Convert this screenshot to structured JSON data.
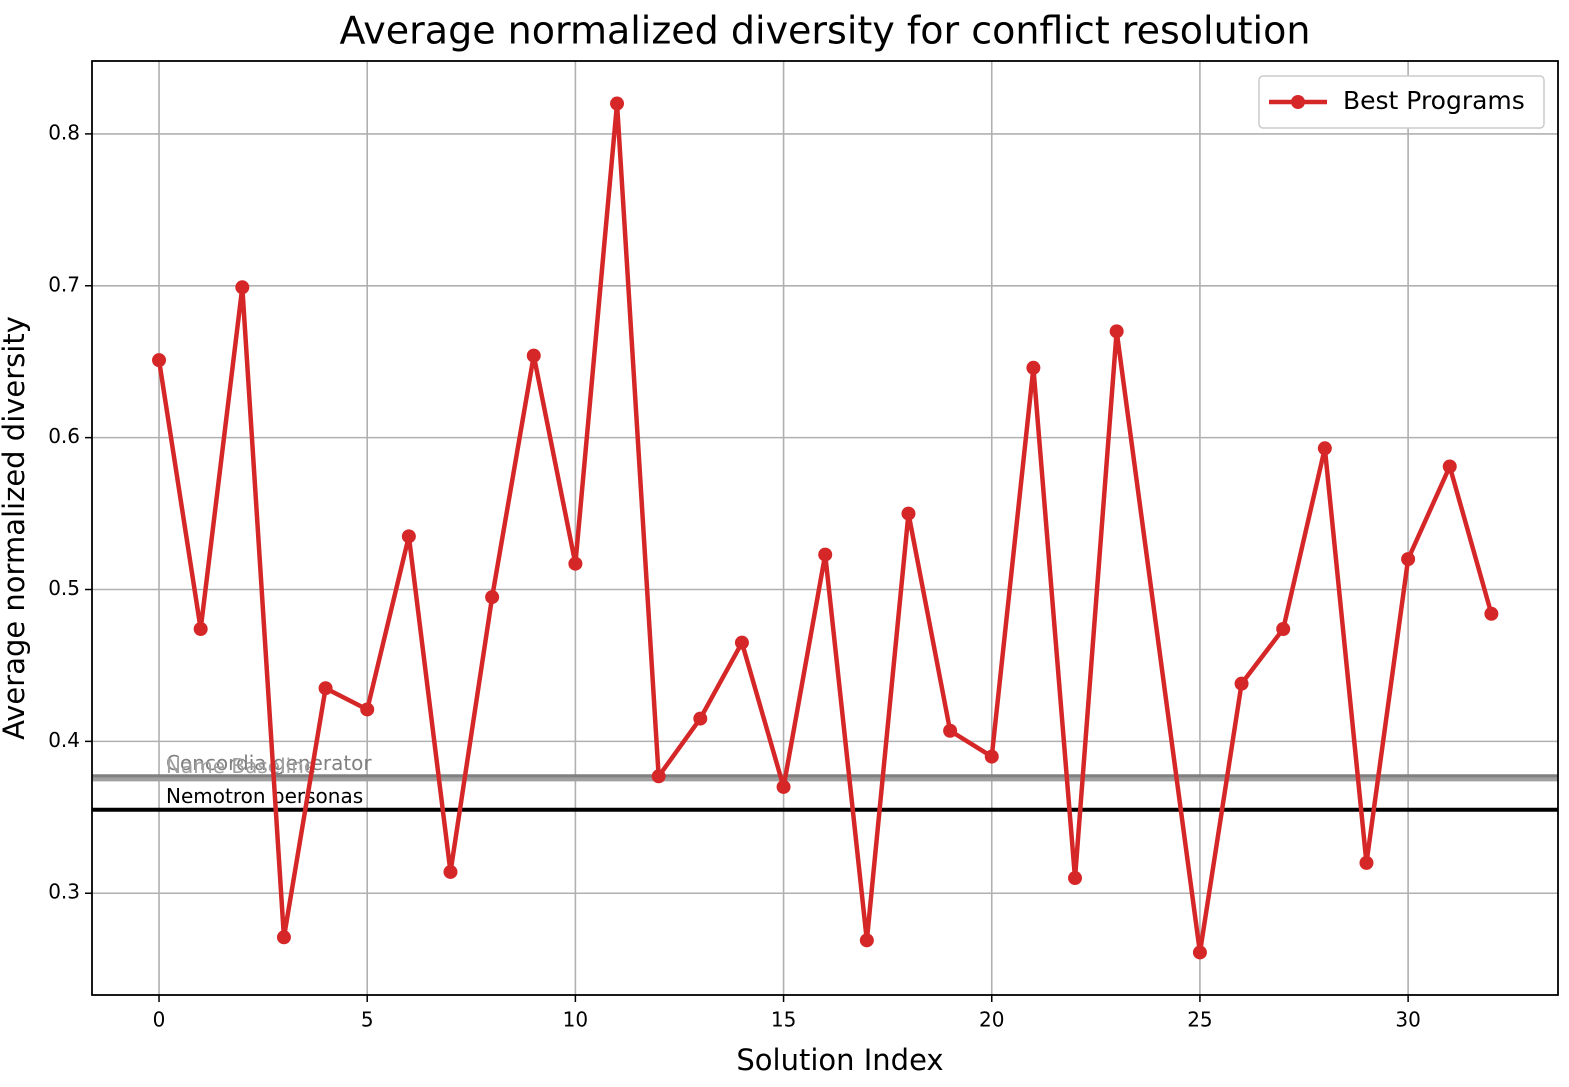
{
  "chart_data": {
    "type": "line",
    "title": "Average normalized diversity for conflict resolution",
    "xlabel": "Solution Index",
    "ylabel": "Average normalized diversity",
    "x": [
      0,
      1,
      2,
      3,
      4,
      5,
      6,
      7,
      8,
      9,
      10,
      11,
      12,
      13,
      14,
      15,
      16,
      17,
      18,
      19,
      20,
      21,
      22,
      23,
      25,
      26,
      27,
      28,
      29,
      30,
      31,
      32
    ],
    "series": [
      {
        "name": "Best Programs",
        "color": "#d62728",
        "values": [
          0.651,
          0.474,
          0.699,
          0.271,
          0.435,
          0.421,
          0.535,
          0.314,
          0.495,
          0.654,
          0.517,
          0.82,
          0.377,
          0.415,
          0.465,
          0.37,
          0.523,
          0.269,
          0.55,
          0.407,
          0.39,
          0.646,
          0.31,
          0.67,
          0.261,
          0.438,
          0.474,
          0.593,
          0.32,
          0.52,
          0.581,
          0.484
        ]
      }
    ],
    "reference_lines": [
      {
        "label": "Concordia generator",
        "value": 0.377,
        "color": "#808080"
      },
      {
        "label": "Name Baseline",
        "value": 0.375,
        "color": "#a0a0a0"
      },
      {
        "label": "Nemotron personas",
        "value": 0.355,
        "color": "#000000"
      }
    ],
    "xlim": [
      -1.61,
      33.6
    ],
    "xticks": [
      0,
      5,
      10,
      15,
      20,
      25,
      30
    ],
    "ylim": [
      0.233,
      0.848
    ],
    "yticks": [
      0.3,
      0.4,
      0.5,
      0.6,
      0.7,
      0.8
    ],
    "grid": true,
    "legend": "upper right"
  }
}
